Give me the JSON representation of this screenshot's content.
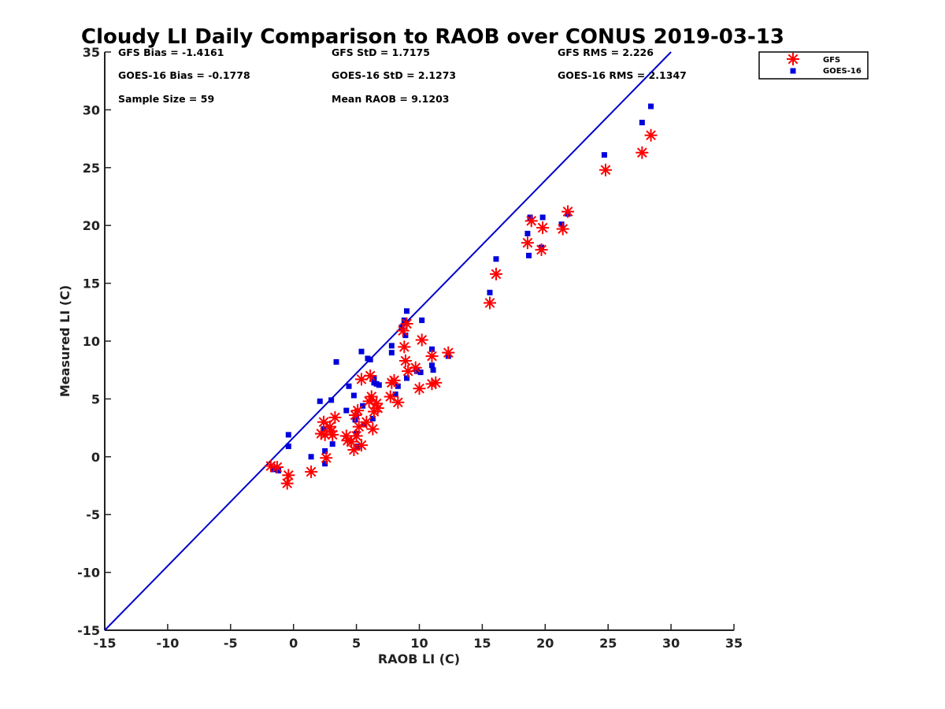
{
  "chart_data": {
    "type": "scatter",
    "title": "Cloudy LI Daily Comparison to RAOB over CONUS 2019-03-13",
    "xlabel": "RAOB LI (C)",
    "ylabel": "Measured LI (C)",
    "xlim": [
      -15,
      35
    ],
    "ylim": [
      -15,
      35
    ],
    "xticks": [
      "-15",
      "-10",
      "-5",
      "0",
      "5",
      "10",
      "15",
      "20",
      "25",
      "30",
      "35"
    ],
    "yticks": [
      "-15",
      "-10",
      "-5",
      "0",
      "5",
      "10",
      "15",
      "20",
      "25",
      "30",
      "35"
    ],
    "reference_line": {
      "from": [
        -15,
        -15
      ],
      "to": [
        30,
        35
      ],
      "color": "#0000cc"
    },
    "legend_position": "top-right",
    "stats": [
      [
        "GFS Bias = -1.4161",
        "GFS StD = 1.7175",
        "GFS RMS = 2.226"
      ],
      [
        "GOES-16 Bias = -0.1778",
        "GOES-16 StD = 2.1273",
        "GOES-16 RMS = 2.1347"
      ],
      [
        "Sample Size = 59",
        "Mean RAOB = 9.1203",
        ""
      ]
    ],
    "series": [
      {
        "name": "GFS",
        "marker": "asterisk",
        "color": "#ff0000",
        "points": [
          [
            -1.8,
            -0.8
          ],
          [
            -1.3,
            -0.9
          ],
          [
            -0.5,
            -2.3
          ],
          [
            -0.4,
            -1.6
          ],
          [
            1.4,
            -1.3
          ],
          [
            2.2,
            2.0
          ],
          [
            2.4,
            3.0
          ],
          [
            2.5,
            1.9
          ],
          [
            2.6,
            -0.1
          ],
          [
            2.9,
            2.6
          ],
          [
            3.0,
            2.2
          ],
          [
            3.1,
            1.9
          ],
          [
            3.3,
            3.4
          ],
          [
            4.2,
            1.8
          ],
          [
            4.3,
            1.4
          ],
          [
            4.6,
            1.3
          ],
          [
            4.8,
            0.6
          ],
          [
            4.9,
            3.6
          ],
          [
            5.0,
            1.8
          ],
          [
            5.1,
            4.0
          ],
          [
            5.2,
            2.6
          ],
          [
            5.4,
            1.0
          ],
          [
            5.4,
            6.7
          ],
          [
            5.8,
            3.0
          ],
          [
            6.0,
            4.8
          ],
          [
            6.1,
            7.0
          ],
          [
            6.2,
            5.2
          ],
          [
            6.3,
            2.4
          ],
          [
            6.4,
            3.9
          ],
          [
            6.6,
            4.6
          ],
          [
            6.7,
            4.2
          ],
          [
            7.7,
            5.2
          ],
          [
            7.8,
            6.4
          ],
          [
            8.0,
            6.6
          ],
          [
            8.3,
            4.7
          ],
          [
            8.7,
            10.9
          ],
          [
            8.8,
            9.5
          ],
          [
            8.9,
            8.3
          ],
          [
            9.0,
            11.5
          ],
          [
            9.1,
            7.4
          ],
          [
            9.7,
            7.7
          ],
          [
            10.0,
            5.9
          ],
          [
            10.2,
            10.1
          ],
          [
            11.0,
            6.3
          ],
          [
            11.0,
            8.7
          ],
          [
            11.3,
            6.4
          ],
          [
            12.3,
            9.0
          ],
          [
            15.6,
            13.3
          ],
          [
            16.1,
            15.8
          ],
          [
            18.6,
            18.5
          ],
          [
            18.9,
            20.4
          ],
          [
            19.7,
            17.9
          ],
          [
            19.8,
            19.8
          ],
          [
            21.4,
            19.7
          ],
          [
            21.8,
            21.2
          ],
          [
            24.8,
            24.8
          ],
          [
            27.7,
            26.3
          ],
          [
            28.4,
            27.8
          ]
        ]
      },
      {
        "name": "GOES-16",
        "marker": "square",
        "color": "#0000dd",
        "points": [
          [
            -1.6,
            -1.1
          ],
          [
            -1.2,
            -1.2
          ],
          [
            -0.4,
            1.9
          ],
          [
            -0.4,
            0.9
          ],
          [
            1.4,
            0.0
          ],
          [
            2.1,
            4.8
          ],
          [
            2.4,
            2.4
          ],
          [
            2.5,
            0.5
          ],
          [
            2.5,
            -0.6
          ],
          [
            3.0,
            4.9
          ],
          [
            3.1,
            1.1
          ],
          [
            3.4,
            8.2
          ],
          [
            4.2,
            4.0
          ],
          [
            4.4,
            6.1
          ],
          [
            4.8,
            5.3
          ],
          [
            4.9,
            3.2
          ],
          [
            5.0,
            2.0
          ],
          [
            5.0,
            3.5
          ],
          [
            5.1,
            0.9
          ],
          [
            5.4,
            9.1
          ],
          [
            5.5,
            4.4
          ],
          [
            5.6,
            2.8
          ],
          [
            5.9,
            8.5
          ],
          [
            6.1,
            8.4
          ],
          [
            6.3,
            3.3
          ],
          [
            6.4,
            6.8
          ],
          [
            6.4,
            6.4
          ],
          [
            6.6,
            6.3
          ],
          [
            6.8,
            6.2
          ],
          [
            7.8,
            9.0
          ],
          [
            7.8,
            9.6
          ],
          [
            8.1,
            5.4
          ],
          [
            8.3,
            6.1
          ],
          [
            8.6,
            11.2
          ],
          [
            8.8,
            11.8
          ],
          [
            8.9,
            10.5
          ],
          [
            9.0,
            12.6
          ],
          [
            9.0,
            6.8
          ],
          [
            9.8,
            7.4
          ],
          [
            10.1,
            7.3
          ],
          [
            10.2,
            11.8
          ],
          [
            11.0,
            9.3
          ],
          [
            11.0,
            7.9
          ],
          [
            11.1,
            7.5
          ],
          [
            12.3,
            8.7
          ],
          [
            15.6,
            14.2
          ],
          [
            16.1,
            17.1
          ],
          [
            18.6,
            19.3
          ],
          [
            18.7,
            17.4
          ],
          [
            18.8,
            20.7
          ],
          [
            19.7,
            18.1
          ],
          [
            19.8,
            20.7
          ],
          [
            21.3,
            20.1
          ],
          [
            21.8,
            21.0
          ],
          [
            24.7,
            26.1
          ],
          [
            27.7,
            28.9
          ],
          [
            28.4,
            30.3
          ]
        ]
      }
    ]
  }
}
